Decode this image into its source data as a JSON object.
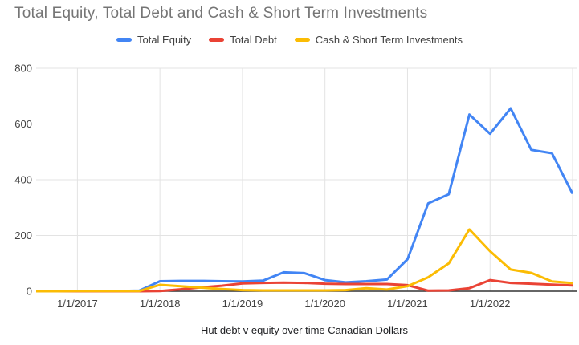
{
  "title": "Total Equity, Total Debt and Cash & Short Term Investments",
  "caption": "Hut debt v equity over time Canadian Dollars",
  "colors": {
    "equity": "#4285F4",
    "debt": "#EA4335",
    "cash": "#FBBC04",
    "grid": "#E3E3E3",
    "baseline": "#333333",
    "title_text": "#757575",
    "tick_text": "#424242",
    "caption_text": "#202124"
  },
  "legend": {
    "items": [
      {
        "label": "Total Equity",
        "color_key": "equity"
      },
      {
        "label": "Total Debt",
        "color_key": "debt"
      },
      {
        "label": "Cash & Short Term Investments",
        "color_key": "cash"
      }
    ]
  },
  "chart_data": {
    "type": "line",
    "title": "Total Equity, Total Debt and Cash & Short Term Investments",
    "xlabel": "Hut debt v equity over time Canadian Dollars",
    "ylabel": "",
    "ylim": [
      0,
      800
    ],
    "yticks": [
      0,
      200,
      400,
      600,
      800
    ],
    "grid": true,
    "legend_position": "top",
    "x": [
      "7/1/2016",
      "10/1/2016",
      "1/1/2017",
      "4/1/2017",
      "7/1/2017",
      "10/1/2017",
      "1/1/2018",
      "4/1/2018",
      "7/1/2018",
      "10/1/2018",
      "1/1/2019",
      "4/1/2019",
      "7/1/2019",
      "10/1/2019",
      "1/1/2020",
      "4/1/2020",
      "7/1/2020",
      "10/1/2020",
      "1/1/2021",
      "4/1/2021",
      "7/1/2021",
      "10/1/2021",
      "1/1/2022",
      "4/1/2022",
      "7/1/2022",
      "10/1/2022",
      "1/1/2023"
    ],
    "xlabel_ticks": [
      "1/1/2017",
      "1/1/2018",
      "1/1/2019",
      "1/1/2020",
      "1/1/2021",
      "1/1/2022"
    ],
    "series": [
      {
        "name": "Total Equity",
        "color_key": "equity",
        "values": [
          0,
          0,
          1,
          1,
          1,
          2,
          36,
          37,
          37,
          36,
          35,
          38,
          68,
          65,
          40,
          32,
          36,
          42,
          115,
          315,
          348,
          634,
          565,
          656,
          507,
          495,
          350
        ]
      },
      {
        "name": "Total Debt",
        "color_key": "debt",
        "values": [
          0,
          0,
          0,
          0,
          0,
          0,
          1,
          7,
          14,
          20,
          28,
          30,
          31,
          30,
          27,
          26,
          26,
          26,
          22,
          2,
          3,
          11,
          40,
          30,
          27,
          24,
          21
        ]
      },
      {
        "name": "Cash & Short Term Investments",
        "color_key": "cash",
        "values": [
          0,
          0,
          1,
          1,
          1,
          1,
          23,
          18,
          13,
          8,
          4,
          3,
          3,
          3,
          3,
          4,
          11,
          6,
          18,
          50,
          100,
          222,
          144,
          78,
          66,
          35,
          29
        ]
      }
    ]
  }
}
